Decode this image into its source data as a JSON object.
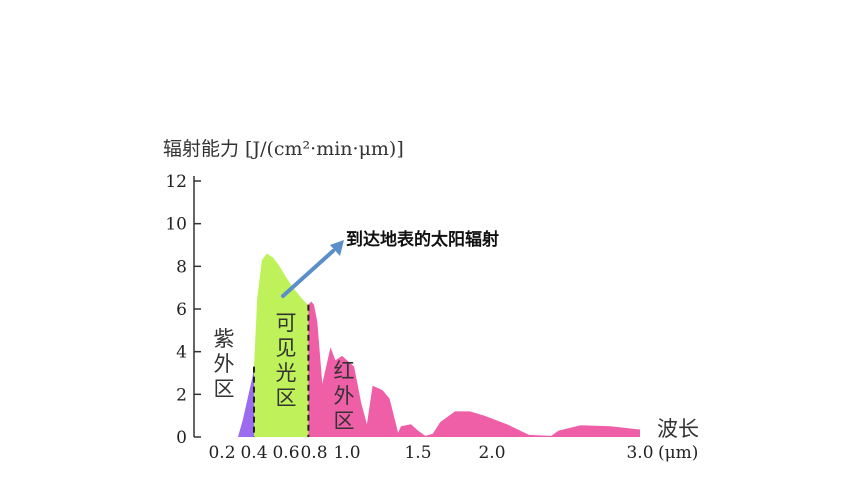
{
  "chart_data": {
    "type": "area",
    "title": "",
    "ylabel": "辐射能力 [J/(cm²·min·μm)]",
    "xlabel": "波长",
    "x_unit": "(μm)",
    "ylim": [
      0,
      12
    ],
    "y_ticks": [
      0,
      2,
      4,
      6,
      8,
      10,
      12
    ],
    "y_tick_labels": [
      "0",
      "2",
      "4",
      "6",
      "8",
      "10",
      "12"
    ],
    "x_ticks": [
      0.2,
      0.4,
      0.6,
      0.8,
      1.0,
      1.5,
      2.0,
      3.0
    ],
    "x_tick_labels": [
      "0.2",
      "0.4",
      "0.6",
      "0.8",
      "1.0",
      "1.5",
      "2.0",
      "3.0"
    ],
    "series_name": "到达地表的太阳辐射",
    "regions": [
      {
        "key": "uv",
        "label": "紫外区",
        "range": [
          0.2,
          0.4
        ],
        "color": "#9b6cf0"
      },
      {
        "key": "visible",
        "label": "可见光区",
        "range": [
          0.4,
          0.76
        ],
        "color": "#bff25a"
      },
      {
        "key": "ir",
        "label": "红外区",
        "range": [
          0.76,
          3.0
        ],
        "color": "#ef5fa8"
      }
    ],
    "boundaries": [
      0.4,
      0.76
    ],
    "points": [
      [
        0.3,
        0.0
      ],
      [
        0.33,
        0.8
      ],
      [
        0.36,
        1.8
      ],
      [
        0.39,
        2.8
      ],
      [
        0.4,
        3.3
      ],
      [
        0.42,
        6.5
      ],
      [
        0.45,
        8.3
      ],
      [
        0.48,
        8.6
      ],
      [
        0.52,
        8.4
      ],
      [
        0.56,
        8.0
      ],
      [
        0.6,
        7.5
      ],
      [
        0.65,
        7.0
      ],
      [
        0.7,
        6.6
      ],
      [
        0.74,
        6.3
      ],
      [
        0.76,
        6.2
      ],
      [
        0.78,
        6.35
      ],
      [
        0.8,
        6.2
      ],
      [
        0.82,
        5.4
      ],
      [
        0.85,
        2.5
      ],
      [
        0.9,
        4.2
      ],
      [
        0.93,
        3.6
      ],
      [
        0.97,
        3.8
      ],
      [
        1.0,
        3.6
      ],
      [
        1.05,
        3.3
      ],
      [
        1.1,
        1.6
      ],
      [
        1.14,
        0.6
      ],
      [
        1.18,
        2.4
      ],
      [
        1.25,
        2.2
      ],
      [
        1.3,
        1.8
      ],
      [
        1.36,
        0.2
      ],
      [
        1.38,
        0.5
      ],
      [
        1.45,
        0.6
      ],
      [
        1.5,
        0.3
      ],
      [
        1.55,
        0.05
      ],
      [
        1.6,
        0.15
      ],
      [
        1.65,
        0.7
      ],
      [
        1.75,
        1.2
      ],
      [
        1.85,
        1.2
      ],
      [
        1.95,
        1.0
      ],
      [
        2.1,
        0.6
      ],
      [
        2.25,
        0.1
      ],
      [
        2.4,
        0.05
      ],
      [
        2.45,
        0.3
      ],
      [
        2.6,
        0.55
      ],
      [
        2.8,
        0.5
      ],
      [
        3.0,
        0.35
      ]
    ]
  }
}
